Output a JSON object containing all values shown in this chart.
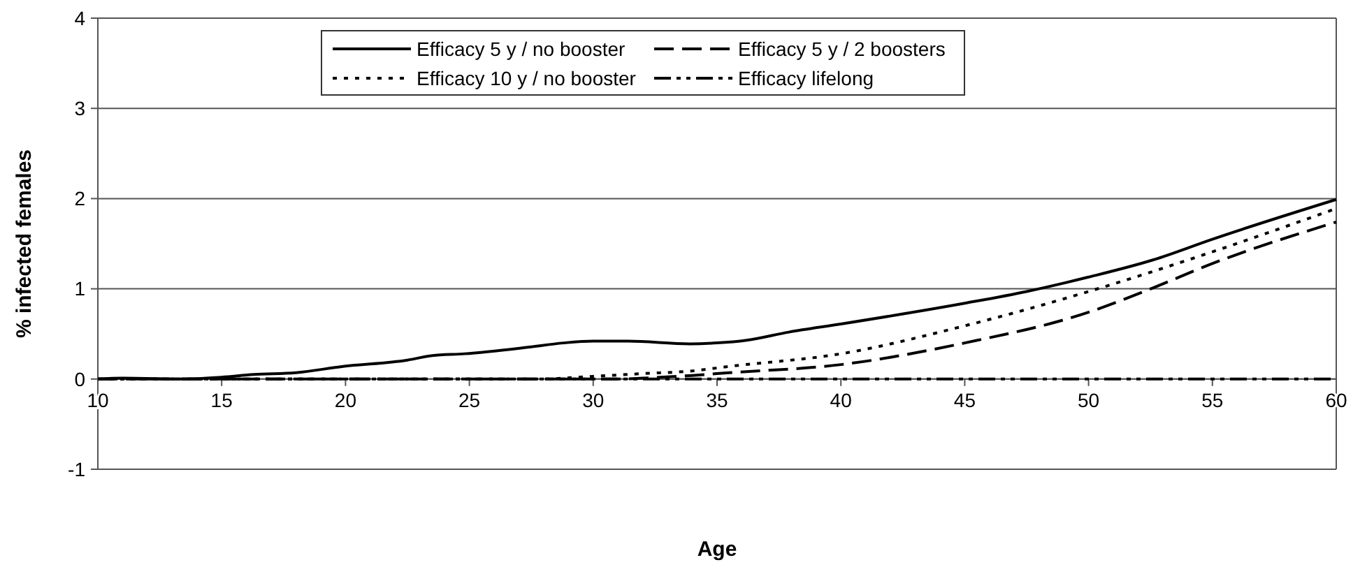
{
  "chart_data": {
    "type": "line",
    "xlabel": "Age",
    "ylabel": "% infected females",
    "xlim": [
      10,
      60
    ],
    "xticks": [
      10,
      15,
      20,
      25,
      30,
      35,
      40,
      45,
      50,
      55,
      60
    ],
    "ylim": [
      -1,
      4
    ],
    "yticks": [
      -1,
      0,
      1,
      2,
      3,
      4
    ],
    "grid": "y",
    "legend": "top",
    "series": [
      {
        "name": "Efficacy 5 y / no booster",
        "color": "#000000",
        "line_style": "solid",
        "x": [
          10,
          11,
          13.6,
          15,
          16.3,
          18,
          19.9,
          22.5,
          23.5,
          24.8,
          27.3,
          28.8,
          30,
          31.4,
          33.9,
          35,
          36.2,
          37.9,
          40,
          45,
          47.5,
          50,
          52.6,
          55,
          60
        ],
        "values": [
          0,
          0.01,
          0,
          0.02,
          0.05,
          0.07,
          0.14,
          0.21,
          0.26,
          0.28,
          0.35,
          0.4,
          0.42,
          0.42,
          0.39,
          0.4,
          0.43,
          0.52,
          0.61,
          0.84,
          0.97,
          1.13,
          1.32,
          1.55,
          1.99
        ]
      },
      {
        "name": "Efficacy 5 y / 2 boosters",
        "color": "#000000",
        "line_style": "dashed",
        "x": [
          10,
          31,
          32,
          34,
          35.5,
          40,
          45,
          50,
          52.6,
          55,
          60
        ],
        "values": [
          0,
          0,
          0.01,
          0.04,
          0.07,
          0.16,
          0.4,
          0.74,
          1.01,
          1.28,
          1.74
        ]
      },
      {
        "name": "Efficacy 10 y / no booster",
        "color": "#000000",
        "line_style": "dotted",
        "x": [
          10,
          27.8,
          30,
          32,
          34,
          35.5,
          40,
          45,
          50,
          55,
          60
        ],
        "values": [
          0,
          0,
          0.03,
          0.06,
          0.09,
          0.14,
          0.28,
          0.59,
          0.97,
          1.41,
          1.89
        ]
      },
      {
        "name": "Efficacy lifelong",
        "color": "#000000",
        "line_style": "dashdotdot",
        "x": [
          10,
          60
        ],
        "values": [
          0,
          0
        ]
      }
    ]
  }
}
